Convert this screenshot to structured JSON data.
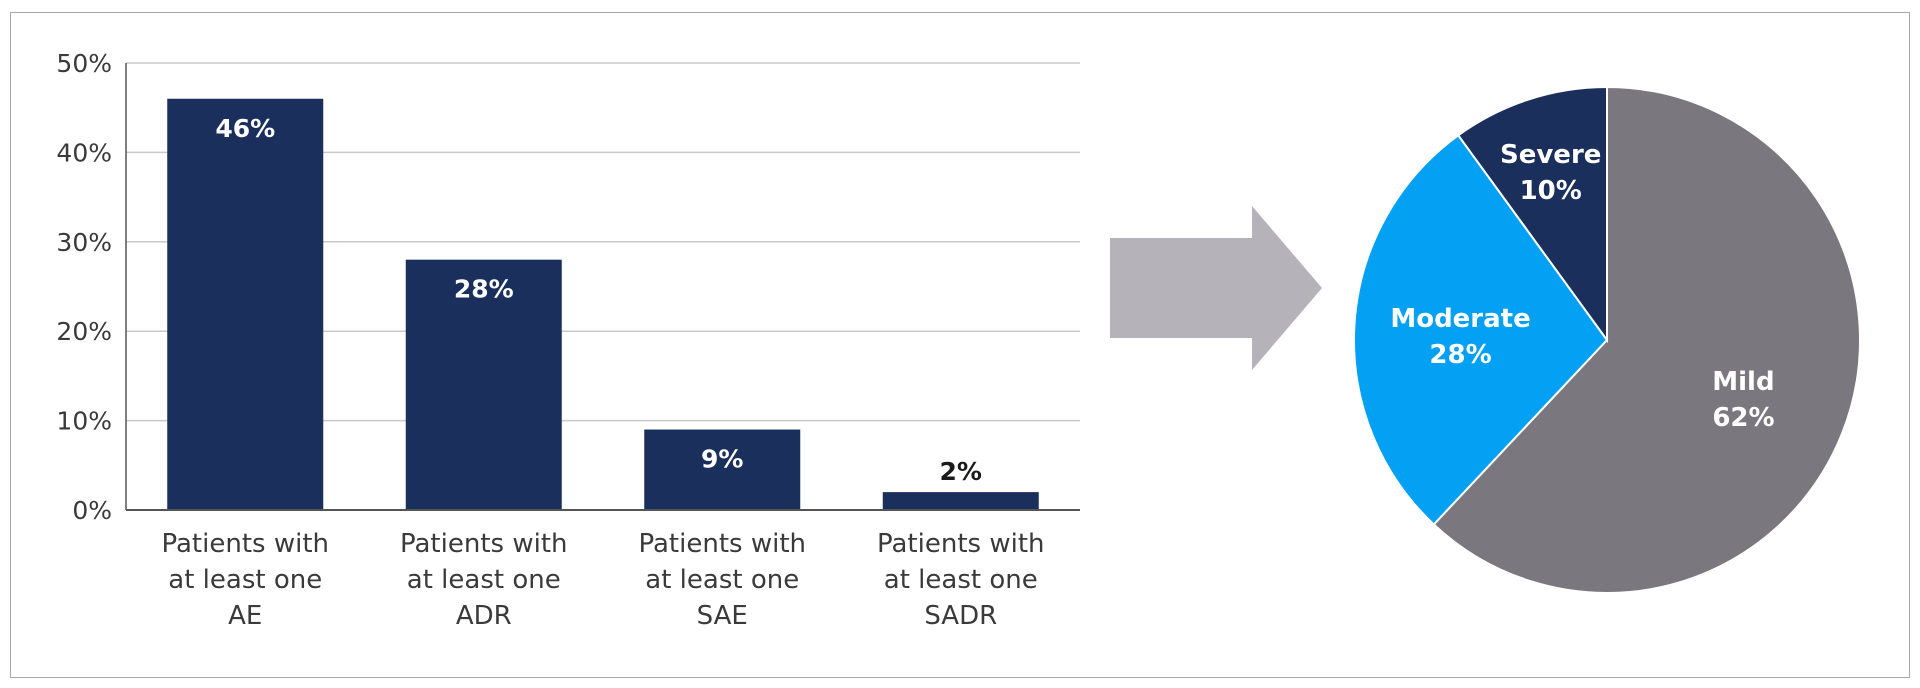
{
  "chart_data": [
    {
      "type": "bar",
      "categories": [
        [
          "Patients with",
          "at least one",
          "AE"
        ],
        [
          "Patients with",
          "at least one",
          "ADR"
        ],
        [
          "Patients with",
          "at least one",
          "SAE"
        ],
        [
          "Patients with",
          "at least one",
          "SADR"
        ]
      ],
      "values": [
        46,
        28,
        9,
        2
      ],
      "data_labels": [
        "46%",
        "28%",
        "9%",
        "2%"
      ],
      "ylim": [
        0,
        50
      ],
      "yticks": [
        "0%",
        "10%",
        "20%",
        "30%",
        "40%",
        "50%"
      ],
      "grid": true,
      "bar_color": "#1a2f5b"
    },
    {
      "type": "pie",
      "slices": [
        {
          "name": "Mild",
          "label": "62%",
          "value": 62,
          "color": "#7b777e"
        },
        {
          "name": "Moderate",
          "label": "28%",
          "value": 28,
          "color": "#04a0f3"
        },
        {
          "name": "Severe",
          "label": "10%",
          "value": 10,
          "color": "#1a2f5b"
        }
      ]
    }
  ],
  "arrow_color": "#b5b3b9"
}
